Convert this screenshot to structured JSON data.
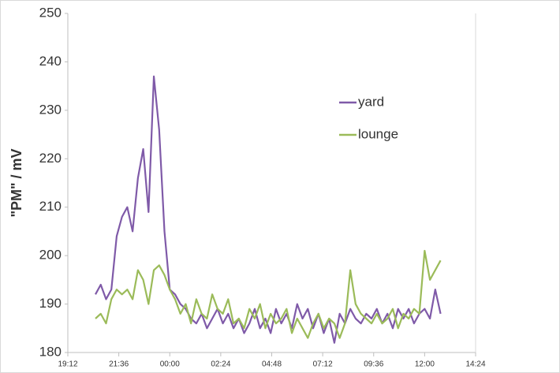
{
  "chart_data": {
    "type": "line",
    "ylabel": "\"PM\" / mV",
    "x": [
      20.5,
      20.75,
      21,
      21.25,
      21.5,
      21.75,
      22,
      22.25,
      22.5,
      22.75,
      23,
      23.25,
      23.5,
      23.75,
      24,
      24.25,
      24.5,
      24.75,
      25,
      25.25,
      25.5,
      25.75,
      26,
      26.25,
      26.5,
      26.75,
      27,
      27.25,
      27.5,
      27.75,
      28,
      28.25,
      28.5,
      28.75,
      29,
      29.25,
      29.5,
      29.75,
      30,
      30.25,
      30.5,
      30.75,
      31,
      31.25,
      31.5,
      31.75,
      32,
      32.25,
      32.5,
      32.75,
      33,
      33.25,
      33.5,
      33.75,
      34,
      34.25,
      34.5,
      34.75,
      35,
      35.25,
      35.5,
      35.75,
      36,
      36.25,
      36.5,
      36.75
    ],
    "series": [
      {
        "name": "yard",
        "color": "#7f5aa8",
        "values": [
          192,
          194,
          191,
          193,
          204,
          208,
          210,
          205,
          216,
          222,
          209,
          237,
          226,
          205,
          193,
          192,
          190,
          189,
          187,
          186,
          188,
          185,
          187,
          189,
          186,
          188,
          185,
          187,
          184,
          186,
          189,
          185,
          187,
          184,
          189,
          186,
          188,
          185,
          190,
          187,
          189,
          185,
          188,
          184,
          187,
          182,
          188,
          186,
          189,
          187,
          186,
          188,
          187,
          189,
          186,
          188,
          185,
          189,
          187,
          189,
          186,
          188,
          189,
          187,
          193,
          188
        ]
      },
      {
        "name": "lounge",
        "color": "#9bbb59",
        "values": [
          187,
          188,
          186,
          191,
          193,
          192,
          193,
          191,
          197,
          195,
          190,
          197,
          198,
          196,
          193,
          191,
          188,
          190,
          186,
          191,
          188,
          187,
          192,
          189,
          188,
          191,
          186,
          187,
          185,
          189,
          187,
          190,
          185,
          188,
          186,
          187,
          189,
          184,
          187,
          185,
          183,
          186,
          188,
          185,
          187,
          186,
          183,
          186,
          197,
          190,
          188,
          187,
          186,
          188,
          186,
          187,
          189,
          185,
          188,
          187,
          189,
          188,
          201,
          195,
          197,
          199
        ]
      }
    ],
    "xlim": [
      19.2,
      38.4
    ],
    "xticks": [
      {
        "value": 19.2,
        "label": "19:12"
      },
      {
        "value": 21.6,
        "label": "21:36"
      },
      {
        "value": 24,
        "label": "00:00"
      },
      {
        "value": 26.4,
        "label": "02:24"
      },
      {
        "value": 28.8,
        "label": "04:48"
      },
      {
        "value": 31.2,
        "label": "07:12"
      },
      {
        "value": 33.6,
        "label": "09:36"
      },
      {
        "value": 36,
        "label": "12:00"
      },
      {
        "value": 38.4,
        "label": "14:24"
      }
    ],
    "ylim": [
      180,
      250
    ],
    "yticks": [
      180,
      190,
      200,
      210,
      220,
      230,
      240,
      250
    ],
    "grid": false,
    "legend": "center right"
  }
}
